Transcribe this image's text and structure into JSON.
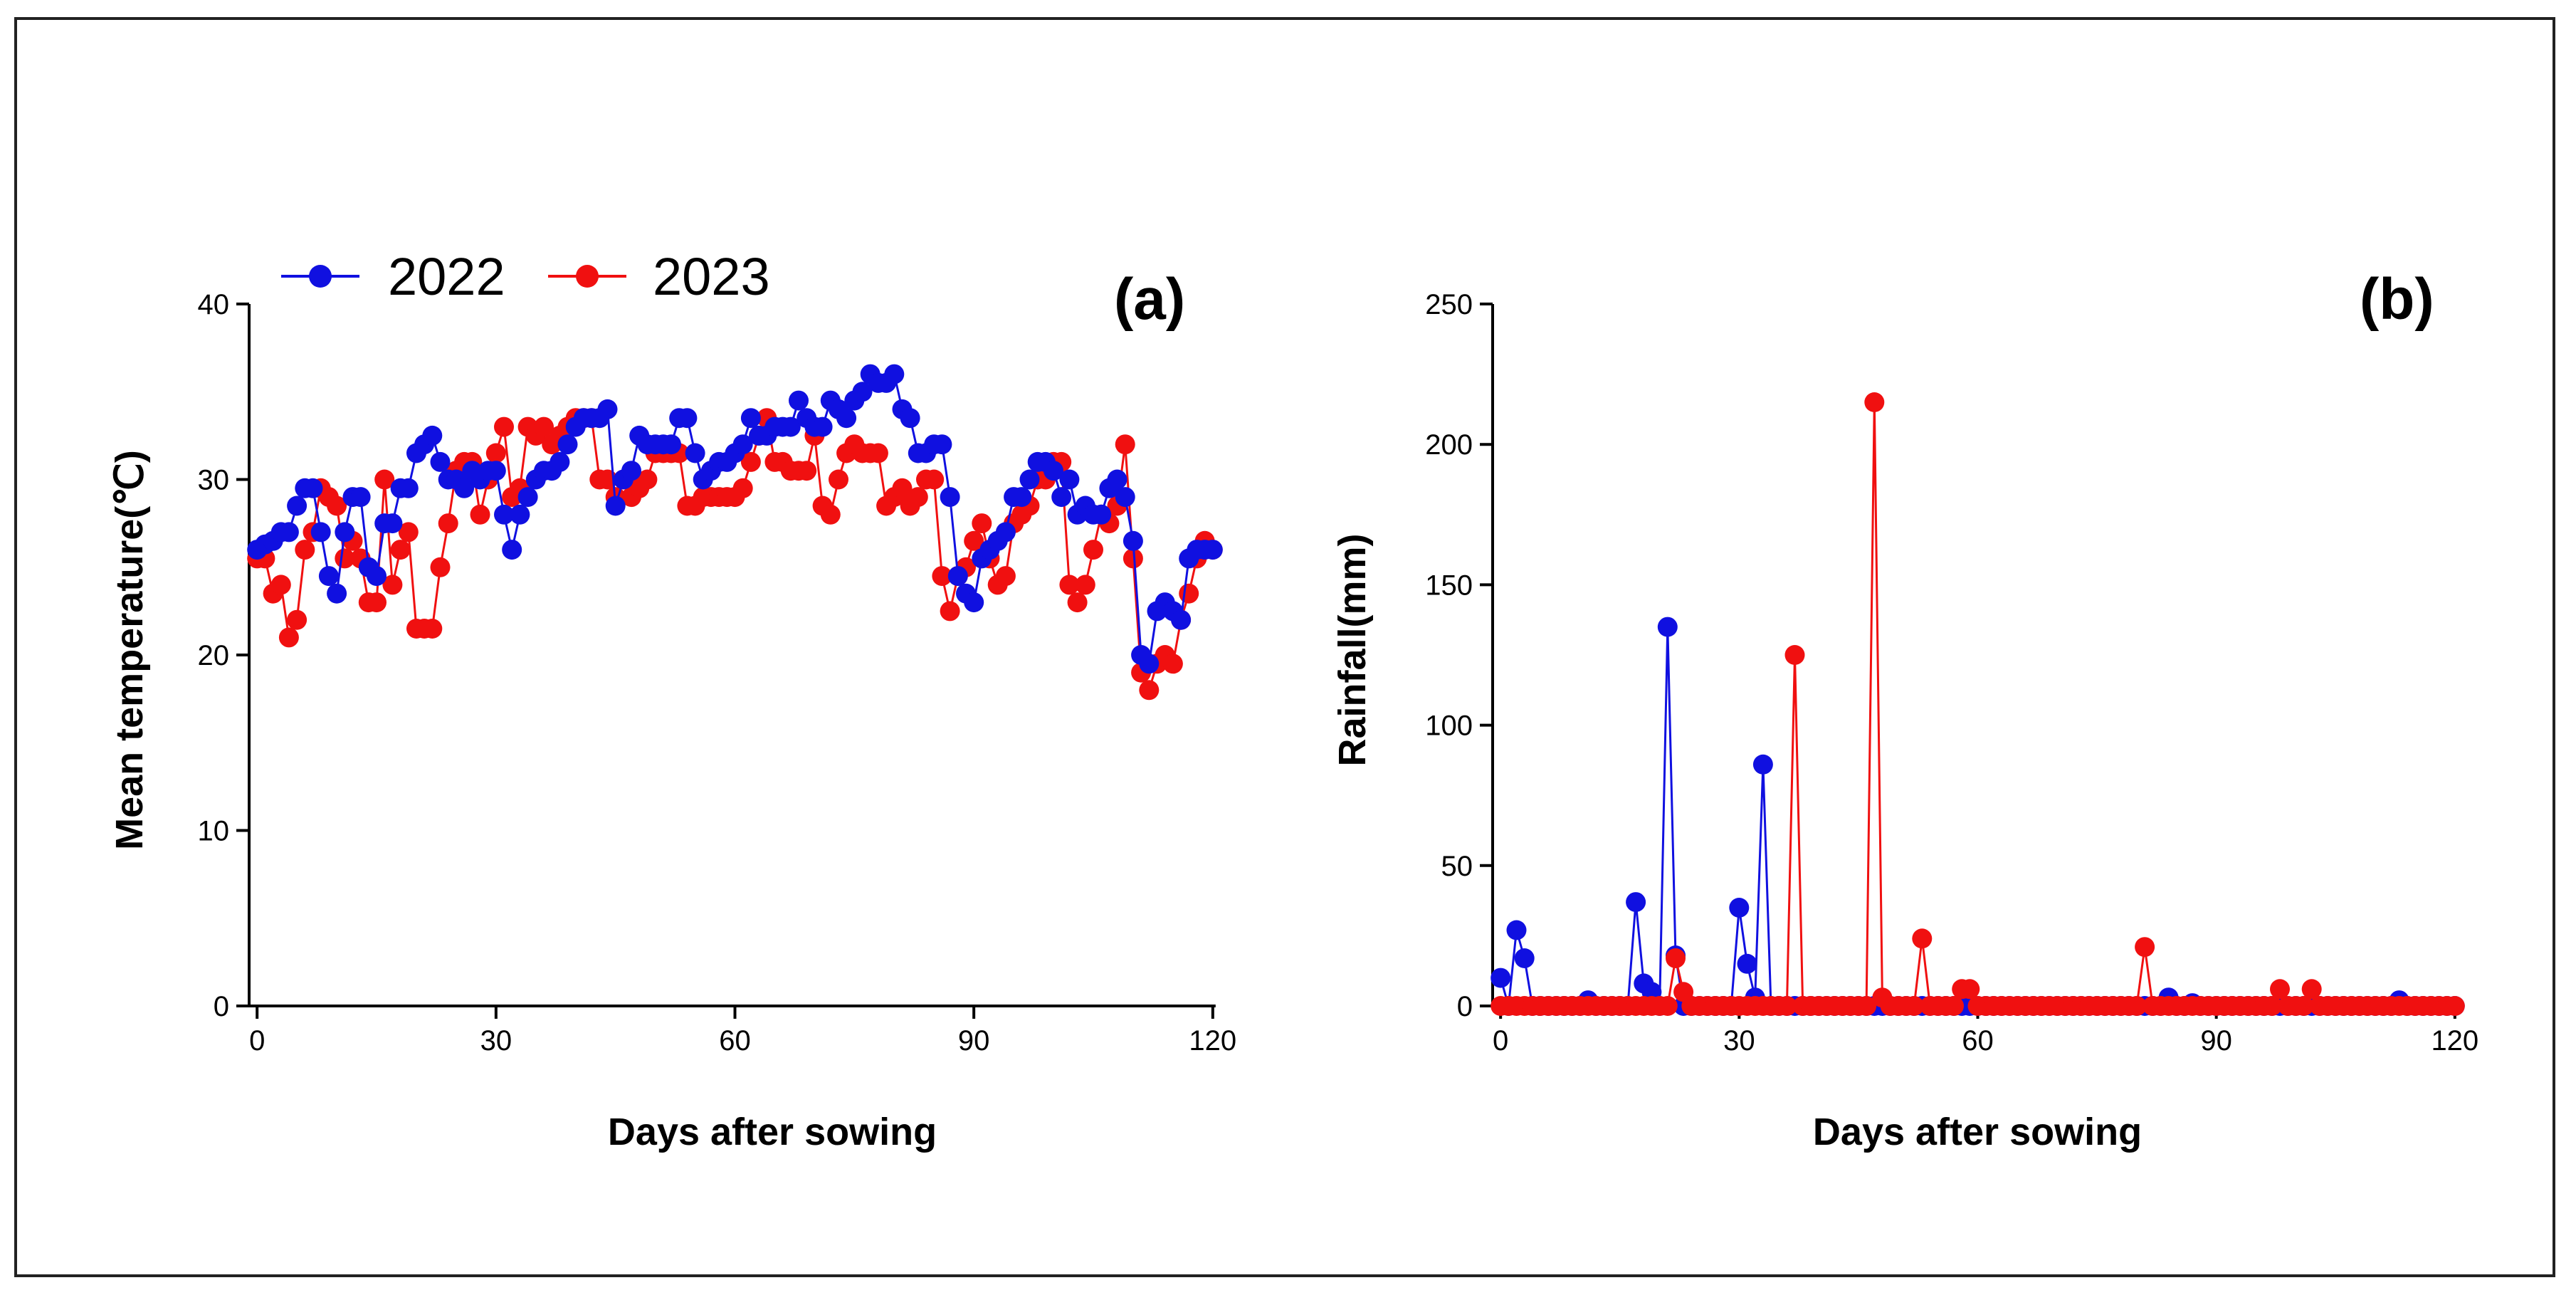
{
  "colors": {
    "series_2022": "#1010e0",
    "series_2023": "#f01010"
  },
  "legend": {
    "labels": [
      "2022",
      "2023"
    ]
  },
  "chart_data": [
    {
      "type": "line",
      "panel_label": "(a)",
      "xlabel": "Days after sowing",
      "ylabel": "Mean temperature(℃)",
      "xlim": [
        -1,
        121
      ],
      "ylim": [
        0,
        40
      ],
      "xticks": [
        0,
        30,
        60,
        90,
        120
      ],
      "yticks": [
        0,
        10,
        20,
        30,
        40
      ],
      "series": [
        {
          "name": "2022",
          "color": "#1010e0",
          "x": [
            0,
            1,
            2,
            3,
            4,
            5,
            6,
            7,
            8,
            9,
            10,
            11,
            12,
            13,
            14,
            15,
            16,
            17,
            18,
            19,
            20,
            21,
            22,
            23,
            24,
            25,
            26,
            27,
            28,
            29,
            30,
            31,
            32,
            33,
            34,
            35,
            36,
            37,
            38,
            39,
            40,
            41,
            42,
            43,
            44,
            45,
            46,
            47,
            48,
            49,
            50,
            51,
            52,
            53,
            54,
            55,
            56,
            57,
            58,
            59,
            60,
            61,
            62,
            63,
            64,
            65,
            66,
            67,
            68,
            69,
            70,
            71,
            72,
            73,
            74,
            75,
            76,
            77,
            78,
            79,
            80,
            81,
            82,
            83,
            84,
            85,
            86,
            87,
            88,
            89,
            90,
            91,
            92,
            93,
            94,
            95,
            96,
            97,
            98,
            99,
            100,
            101,
            102,
            103,
            104,
            105,
            106,
            107,
            108,
            109,
            110,
            111,
            112,
            113,
            114,
            115,
            116,
            117,
            118,
            119,
            120
          ],
          "values": [
            26,
            26.3,
            26.5,
            27,
            27,
            28.5,
            29.5,
            29.5,
            27,
            24.5,
            23.5,
            27,
            29,
            29,
            25,
            24.5,
            27.5,
            27.5,
            29.5,
            29.5,
            31.5,
            32,
            32.5,
            31,
            30,
            30,
            29.5,
            30.5,
            30,
            30.5,
            30.5,
            28,
            26,
            28,
            29,
            30,
            30.5,
            30.5,
            31,
            32,
            33,
            33.5,
            33.5,
            33.5,
            34,
            28.5,
            30,
            30.5,
            32.5,
            32,
            32,
            32,
            32,
            33.5,
            33.5,
            31.5,
            30,
            30.5,
            31,
            31,
            31.5,
            32,
            33.5,
            32.5,
            32.5,
            33,
            33,
            33,
            34.5,
            33.5,
            33,
            33,
            34.5,
            34,
            33.5,
            34.5,
            35,
            36,
            35.5,
            35.5,
            36,
            34,
            33.5,
            31.5,
            31.5,
            32,
            32,
            29,
            24.5,
            23.5,
            23,
            25.5,
            26,
            26.5,
            27,
            29,
            29,
            30,
            31,
            31,
            30.5,
            29,
            30,
            28,
            28.5,
            28,
            28,
            29.5,
            30,
            29,
            26.5,
            20,
            19.5,
            22.5,
            23,
            22.5,
            22,
            25.5,
            26,
            26,
            26
          ]
        },
        {
          "name": "2023",
          "color": "#f01010",
          "x": [
            0,
            1,
            2,
            3,
            4,
            5,
            6,
            7,
            8,
            9,
            10,
            11,
            12,
            13,
            14,
            15,
            16,
            17,
            18,
            19,
            20,
            21,
            22,
            23,
            24,
            25,
            26,
            27,
            28,
            29,
            30,
            31,
            32,
            33,
            34,
            35,
            36,
            37,
            38,
            39,
            40,
            41,
            42,
            43,
            44,
            45,
            46,
            47,
            48,
            49,
            50,
            51,
            52,
            53,
            54,
            55,
            56,
            57,
            58,
            59,
            60,
            61,
            62,
            63,
            64,
            65,
            66,
            67,
            68,
            69,
            70,
            71,
            72,
            73,
            74,
            75,
            76,
            77,
            78,
            79,
            80,
            81,
            82,
            83,
            84,
            85,
            86,
            87,
            88,
            89,
            90,
            91,
            92,
            93,
            94,
            95,
            96,
            97,
            98,
            99,
            100,
            101,
            102,
            103,
            104,
            105,
            106,
            107,
            108,
            109,
            110,
            111,
            112,
            113,
            114,
            115,
            116,
            117,
            118,
            119,
            120
          ],
          "values": [
            25.5,
            25.5,
            23.5,
            24,
            21,
            22,
            26,
            27,
            29.5,
            29,
            28.5,
            25.5,
            26.5,
            25.5,
            23,
            23,
            30,
            24,
            26,
            27,
            21.5,
            21.5,
            21.5,
            25,
            27.5,
            30.5,
            31,
            31,
            28,
            30,
            31.5,
            33,
            29,
            29.5,
            33,
            32.5,
            33,
            32,
            32.5,
            33,
            33.5,
            33.5,
            33.5,
            30,
            30,
            29,
            30,
            29,
            29.5,
            30,
            31.5,
            31.5,
            31.5,
            31.5,
            28.5,
            28.5,
            29,
            29,
            29,
            29,
            29,
            29.5,
            31,
            32.5,
            33.5,
            31,
            31,
            30.5,
            30.5,
            30.5,
            32.5,
            28.5,
            28,
            30,
            31.5,
            32,
            31.5,
            31.5,
            31.5,
            28.5,
            29,
            29.5,
            28.5,
            29,
            30,
            30,
            24.5,
            22.5,
            24.5,
            25,
            26.5,
            27.5,
            25.5,
            24,
            24.5,
            27.5,
            28,
            28.5,
            30,
            30,
            31,
            31,
            24,
            23,
            24,
            26,
            28,
            27.5,
            28.5,
            32,
            25.5,
            19,
            18,
            19.5,
            20,
            19.5,
            22,
            23.5,
            25.5,
            26.5,
            26
          ]
        }
      ]
    },
    {
      "type": "line",
      "panel_label": "(b)",
      "xlabel": "Days after sowing",
      "ylabel": "Rainfall(mm)",
      "xlim": [
        -1,
        121
      ],
      "ylim": [
        0,
        250
      ],
      "xticks": [
        0,
        30,
        60,
        90,
        120
      ],
      "yticks": [
        0,
        50,
        100,
        150,
        200,
        250
      ],
      "series": [
        {
          "name": "2022",
          "color": "#1010e0",
          "x": [
            0,
            1,
            2,
            3,
            4,
            5,
            6,
            7,
            8,
            9,
            10,
            11,
            12,
            13,
            14,
            15,
            16,
            17,
            18,
            19,
            20,
            21,
            22,
            23,
            24,
            25,
            26,
            27,
            28,
            29,
            30,
            31,
            32,
            33,
            34,
            35,
            36,
            37,
            38,
            39,
            40,
            41,
            42,
            43,
            44,
            45,
            46,
            47,
            48,
            49,
            50,
            51,
            52,
            53,
            54,
            55,
            56,
            57,
            58,
            59,
            60,
            61,
            62,
            63,
            64,
            65,
            66,
            67,
            68,
            69,
            70,
            71,
            72,
            73,
            74,
            75,
            76,
            77,
            78,
            79,
            80,
            81,
            82,
            83,
            84,
            85,
            86,
            87,
            88,
            89,
            90,
            91,
            92,
            93,
            94,
            95,
            96,
            97,
            98,
            99,
            100,
            101,
            102,
            103,
            104,
            105,
            106,
            107,
            108,
            109,
            110,
            111,
            112,
            113,
            114,
            115,
            116,
            117,
            118,
            119,
            120
          ],
          "values": [
            10,
            0,
            27,
            17,
            0,
            0,
            0,
            0,
            0,
            0,
            0,
            2,
            0,
            0,
            0,
            0,
            0,
            37,
            8,
            5,
            0,
            135,
            18,
            0,
            0,
            0,
            0,
            0,
            0,
            0,
            35,
            15,
            3,
            86,
            0,
            0,
            0,
            0,
            0,
            0,
            0,
            0,
            0,
            0,
            0,
            0,
            0,
            0,
            0,
            0,
            0,
            0,
            0,
            0,
            0,
            0,
            0,
            0,
            0,
            0,
            0,
            0,
            0,
            0,
            0,
            0,
            0,
            0,
            0,
            0,
            0,
            0,
            0,
            0,
            0,
            0,
            0,
            0,
            0,
            0,
            0,
            0,
            0,
            0,
            3,
            0,
            0,
            1,
            0,
            0,
            0,
            0,
            0,
            0,
            0,
            0,
            0,
            0,
            0,
            0,
            0,
            0,
            0,
            0,
            0,
            0,
            0,
            0,
            0,
            0,
            0,
            0,
            0,
            2,
            0,
            0,
            0,
            0,
            0,
            0,
            0
          ]
        },
        {
          "name": "2023",
          "color": "#f01010",
          "x": [
            0,
            1,
            2,
            3,
            4,
            5,
            6,
            7,
            8,
            9,
            10,
            11,
            12,
            13,
            14,
            15,
            16,
            17,
            18,
            19,
            20,
            21,
            22,
            23,
            24,
            25,
            26,
            27,
            28,
            29,
            30,
            31,
            32,
            33,
            34,
            35,
            36,
            37,
            38,
            39,
            40,
            41,
            42,
            43,
            44,
            45,
            46,
            47,
            48,
            49,
            50,
            51,
            52,
            53,
            54,
            55,
            56,
            57,
            58,
            59,
            60,
            61,
            62,
            63,
            64,
            65,
            66,
            67,
            68,
            69,
            70,
            71,
            72,
            73,
            74,
            75,
            76,
            77,
            78,
            79,
            80,
            81,
            82,
            83,
            84,
            85,
            86,
            87,
            88,
            89,
            90,
            91,
            92,
            93,
            94,
            95,
            96,
            97,
            98,
            99,
            100,
            101,
            102,
            103,
            104,
            105,
            106,
            107,
            108,
            109,
            110,
            111,
            112,
            113,
            114,
            115,
            116,
            117,
            118,
            119,
            120
          ],
          "values": [
            0,
            0,
            0,
            0,
            0,
            0,
            0,
            0,
            0,
            0,
            0,
            0,
            0,
            0,
            0,
            0,
            0,
            0,
            0,
            0,
            0,
            0,
            17,
            5,
            0,
            0,
            0,
            0,
            0,
            0,
            0,
            0,
            0,
            0,
            0,
            0,
            0,
            125,
            0,
            0,
            0,
            0,
            0,
            0,
            0,
            0,
            0,
            215,
            3,
            0,
            0,
            0,
            0,
            24,
            0,
            0,
            0,
            0,
            6,
            6,
            0,
            0,
            0,
            0,
            0,
            0,
            0,
            0,
            0,
            0,
            0,
            0,
            0,
            0,
            0,
            0,
            0,
            0,
            0,
            0,
            0,
            21,
            0,
            0,
            0,
            0,
            0,
            0,
            0,
            0,
            0,
            0,
            0,
            0,
            0,
            0,
            0,
            0,
            6,
            0,
            0,
            0,
            6,
            0,
            0,
            0,
            0,
            0,
            0,
            0,
            0,
            0,
            0,
            0,
            0,
            0,
            0,
            0,
            0,
            0,
            0
          ]
        }
      ]
    }
  ]
}
